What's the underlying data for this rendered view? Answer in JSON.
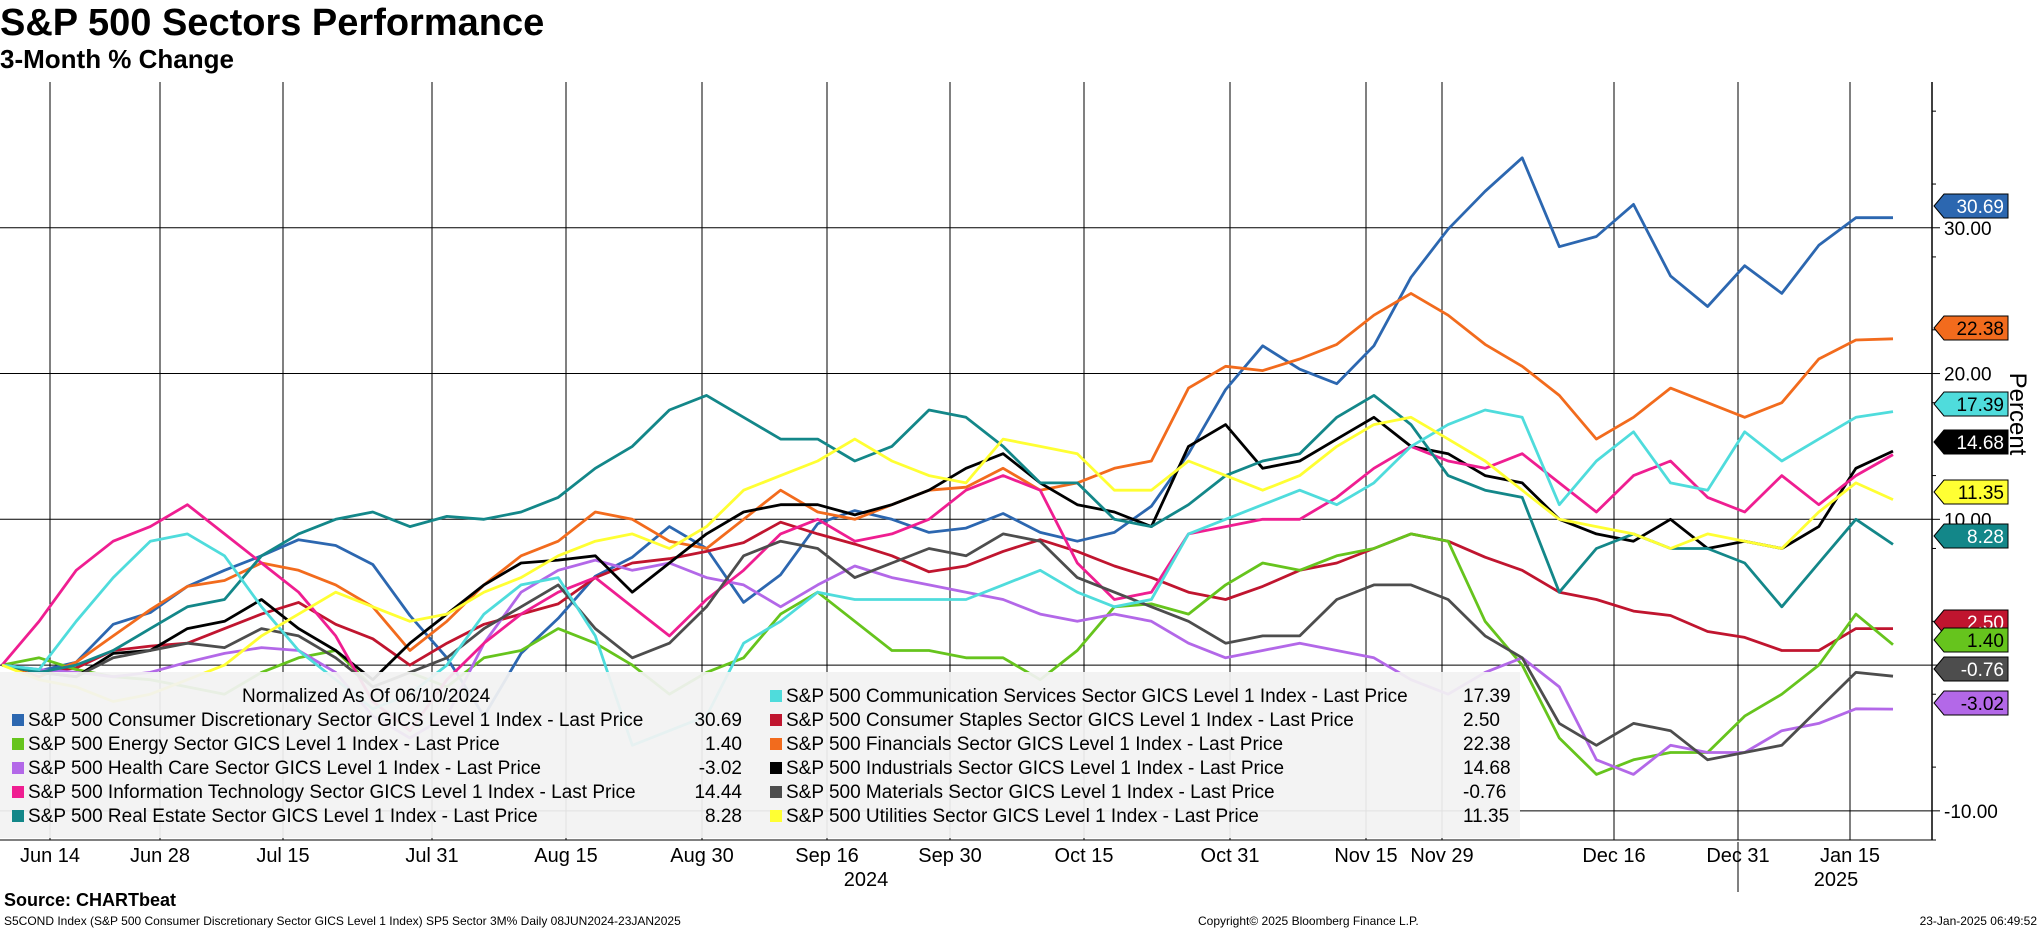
{
  "title": "S&P 500 Sectors Performance",
  "subtitle": "3-Month % Change",
  "source": "Source: CHARTbeat",
  "footer_left": "S5COND Index (S&P 500 Consumer Discretionary Sector GICS Level 1 Index) SP5 Sector 3M%  Daily 08JUN2024-23JAN2025",
  "footer_mid": "Copyright© 2025 Bloomberg Finance L.P.",
  "footer_right": "23-Jan-2025 06:49:52",
  "chart_data": {
    "type": "line",
    "ylabel": "Percent",
    "ylim": [
      -12,
      40
    ],
    "yticks": [
      "30.00",
      "20.00",
      "10.00",
      "0.00",
      "-10.00"
    ],
    "ytick_values": [
      30,
      20,
      10,
      0,
      -10
    ],
    "grid": true,
    "x_tick_labels": [
      "Jun 14",
      "Jun 28",
      "Jul 15",
      "Jul 31",
      "Aug 15",
      "Aug 30",
      "Sep 16",
      "Sep 30",
      "Oct 15",
      "Oct 31",
      "Nov 15",
      "Nov 29",
      "Dec 16",
      "Dec 31",
      "Jan 15"
    ],
    "year_labels": [
      "2024",
      "2025"
    ],
    "legend_header": "Normalized As Of 06/10/2024",
    "legend_placement": "bottom-left",
    "series": [
      {
        "name": "S&P 500 Consumer Discretionary Sector GICS Level 1 Index - Last Price",
        "last": "30.69",
        "color": "#2c67b0",
        "values": [
          0.0,
          -0.4,
          0.2,
          2.8,
          3.6,
          5.4,
          6.5,
          7.5,
          8.6,
          8.2,
          6.9,
          3.4,
          0.5,
          -3.5,
          0.8,
          3.2,
          6.1,
          7.4,
          9.5,
          8.0,
          4.3,
          6.2,
          9.7,
          10.6,
          10.0,
          9.1,
          9.4,
          10.4,
          9.1,
          8.5,
          9.1,
          10.9,
          14.5,
          18.9,
          21.9,
          20.3,
          19.3,
          21.9,
          26.6,
          29.9,
          32.5,
          34.8,
          28.7,
          29.4,
          31.6,
          26.7,
          24.6,
          27.4,
          25.5,
          28.8,
          30.69,
          30.69
        ]
      },
      {
        "name": "S&P 500 Consumer Staples Sector GICS Level 1 Index - Last Price",
        "last": "2.50",
        "color": "#c0152f",
        "values": [
          0.0,
          -0.5,
          -0.2,
          1.0,
          1.3,
          1.5,
          2.5,
          3.5,
          4.3,
          2.8,
          1.8,
          0.0,
          1.5,
          2.8,
          3.5,
          4.2,
          6.0,
          7.0,
          7.3,
          7.8,
          8.4,
          9.8,
          9.0,
          8.3,
          7.5,
          6.4,
          6.8,
          7.8,
          8.6,
          7.8,
          6.8,
          6.0,
          5.0,
          4.5,
          5.4,
          6.5,
          7.0,
          8.0,
          9.0,
          8.5,
          7.4,
          6.5,
          5.0,
          4.5,
          3.7,
          3.4,
          2.3,
          1.9,
          1.0,
          1.0,
          2.5,
          2.5
        ]
      },
      {
        "name": "S&P 500 Energy Sector GICS Level 1 Index - Last Price",
        "last": "1.40",
        "color": "#66c41d",
        "values": [
          0.0,
          0.5,
          -0.3,
          -0.8,
          -1.0,
          -1.5,
          -2.0,
          -0.5,
          0.5,
          1.0,
          -1.5,
          -0.5,
          -1.5,
          0.5,
          1.0,
          2.5,
          1.5,
          0.0,
          -2.0,
          -0.5,
          0.5,
          3.5,
          5.0,
          3.0,
          1.0,
          1.0,
          0.5,
          0.5,
          -1.0,
          1.0,
          4.0,
          4.2,
          3.5,
          5.5,
          7.0,
          6.5,
          7.5,
          8.0,
          9.0,
          8.5,
          3.0,
          0.0,
          -5.0,
          -7.5,
          -6.5,
          -6.0,
          -6.0,
          -3.5,
          -2.0,
          0.0,
          3.5,
          1.4
        ]
      },
      {
        "name": "S&P 500 Financials Sector GICS Level 1 Index - Last Price",
        "last": "22.38",
        "color": "#f26b1d",
        "values": [
          0.0,
          -0.8,
          0.2,
          2.0,
          3.8,
          5.4,
          5.8,
          7.0,
          6.5,
          5.5,
          4.0,
          1.0,
          3.0,
          5.5,
          7.5,
          8.5,
          10.5,
          10.0,
          8.5,
          8.0,
          10.0,
          12.0,
          10.5,
          10.0,
          11.0,
          12.0,
          12.2,
          13.5,
          12.0,
          12.5,
          13.5,
          14.0,
          19.0,
          20.5,
          20.2,
          21.0,
          22.0,
          24.0,
          25.5,
          24.0,
          22.0,
          20.5,
          18.5,
          15.5,
          17.0,
          19.0,
          18.0,
          17.0,
          18.0,
          21.0,
          22.3,
          22.38
        ]
      },
      {
        "name": "S&P 500 Health Care Sector GICS Level 1 Index - Last Price",
        "last": "-3.02",
        "color": "#b368e8",
        "values": [
          0.0,
          -0.3,
          -0.5,
          -0.8,
          -0.5,
          0.2,
          0.8,
          1.2,
          1.0,
          -0.5,
          -3.5,
          -5.0,
          -3.5,
          1.5,
          5.0,
          6.5,
          7.2,
          6.5,
          7.0,
          6.0,
          5.5,
          4.0,
          5.5,
          6.8,
          6.0,
          5.5,
          5.0,
          4.5,
          3.5,
          3.0,
          3.5,
          3.0,
          1.5,
          0.5,
          1.0,
          1.5,
          1.0,
          0.5,
          -1.0,
          -2.0,
          -0.5,
          0.5,
          -1.5,
          -6.5,
          -7.5,
          -5.5,
          -6.0,
          -6.0,
          -4.5,
          -4.0,
          -3.0,
          -3.02
        ]
      },
      {
        "name": "S&P 500 Industrials Sector GICS Level 1 Index - Last Price",
        "last": "14.68",
        "color": "#000000",
        "values": [
          0.0,
          -0.5,
          -0.8,
          0.8,
          1.0,
          2.5,
          3.0,
          4.5,
          2.5,
          1.0,
          -1.0,
          1.5,
          3.5,
          5.5,
          7.0,
          7.2,
          7.5,
          5.0,
          7.0,
          9.0,
          10.5,
          11.0,
          11.0,
          10.3,
          11.0,
          12.0,
          13.5,
          14.5,
          12.5,
          11.0,
          10.5,
          9.5,
          15.0,
          16.5,
          13.5,
          14.0,
          15.5,
          17.0,
          15.0,
          14.5,
          13.0,
          12.5,
          10.0,
          9.0,
          8.5,
          10.0,
          8.0,
          8.5,
          8.0,
          9.5,
          13.5,
          14.68
        ]
      },
      {
        "name": "S&P 500 Information Technology Sector GICS Level 1 Index - Last Price",
        "last": "14.44",
        "color": "#ef1e91",
        "values": [
          0.0,
          3.0,
          6.5,
          8.5,
          9.5,
          11.0,
          9.0,
          7.0,
          5.0,
          2.0,
          -2.5,
          -4.5,
          -1.0,
          1.5,
          3.5,
          5.0,
          6.0,
          4.0,
          2.0,
          4.5,
          6.5,
          9.0,
          10.0,
          8.5,
          9.0,
          10.0,
          12.0,
          13.0,
          12.0,
          7.0,
          4.5,
          5.0,
          9.0,
          9.5,
          10.0,
          10.0,
          11.5,
          13.5,
          15.0,
          14.0,
          13.5,
          14.5,
          12.5,
          10.5,
          13.0,
          14.0,
          11.5,
          10.5,
          13.0,
          11.0,
          13.0,
          14.44
        ]
      },
      {
        "name": "S&P 500 Materials Sector GICS Level 1 Index - Last Price",
        "last": "-0.76",
        "color": "#4d4d4d",
        "values": [
          0.0,
          -0.5,
          -0.8,
          0.5,
          1.0,
          1.5,
          1.2,
          2.5,
          2.0,
          0.5,
          -1.5,
          -0.5,
          0.5,
          2.5,
          4.0,
          5.5,
          2.5,
          0.5,
          1.5,
          4.0,
          7.5,
          8.5,
          8.0,
          6.0,
          7.0,
          8.0,
          7.5,
          9.0,
          8.5,
          6.0,
          5.0,
          4.0,
          3.0,
          1.5,
          2.0,
          2.0,
          4.5,
          5.5,
          5.5,
          4.5,
          2.0,
          0.5,
          -4.0,
          -5.5,
          -4.0,
          -4.5,
          -6.5,
          -6.0,
          -5.5,
          -3.0,
          -0.5,
          -0.76
        ]
      },
      {
        "name": "S&P 500 Real Estate Sector GICS Level 1 Index - Last Price",
        "last": "8.28",
        "color": "#138789",
        "values": [
          0.0,
          -0.5,
          0.0,
          1.0,
          2.5,
          4.0,
          4.5,
          7.5,
          9.0,
          10.0,
          10.5,
          9.5,
          10.2,
          10.0,
          10.5,
          11.5,
          13.5,
          15.0,
          17.5,
          18.5,
          17.0,
          15.5,
          15.5,
          14.0,
          15.0,
          17.5,
          17.0,
          15.0,
          12.5,
          12.5,
          10.0,
          9.5,
          11.0,
          13.0,
          14.0,
          14.5,
          17.0,
          18.5,
          16.5,
          13.0,
          12.0,
          11.5,
          5.0,
          8.0,
          9.0,
          8.0,
          8.0,
          7.0,
          4.0,
          7.0,
          10.0,
          8.28
        ]
      },
      {
        "name": "S&P 500 Communication Services Sector GICS Level 1 Index - Last Price",
        "last": "17.39",
        "color": "#4fdcdc",
        "values": [
          0.0,
          -0.3,
          3.0,
          6.0,
          8.5,
          9.0,
          7.5,
          4.0,
          1.0,
          -1.0,
          -3.0,
          -2.0,
          0.0,
          3.5,
          5.5,
          6.0,
          2.0,
          -5.5,
          -4.5,
          -3.5,
          1.5,
          3.0,
          5.0,
          4.5,
          4.5,
          4.5,
          4.5,
          5.5,
          6.5,
          5.0,
          4.0,
          4.5,
          9.0,
          10.0,
          11.0,
          12.0,
          11.0,
          12.5,
          15.0,
          16.5,
          17.5,
          17.0,
          11.0,
          14.0,
          16.0,
          12.5,
          12.0,
          16.0,
          14.0,
          15.5,
          17.0,
          17.39
        ]
      },
      {
        "name": "S&P 500 Utilities Sector GICS Level 1 Index - Last Price",
        "last": "11.35",
        "color": "#ffff33",
        "values": [
          0.0,
          -1.0,
          -1.5,
          -2.5,
          -2.0,
          -1.0,
          0.0,
          2.0,
          3.5,
          5.0,
          4.0,
          3.0,
          3.5,
          5.0,
          6.0,
          7.5,
          8.5,
          9.0,
          8.0,
          9.5,
          12.0,
          13.0,
          14.0,
          15.5,
          14.0,
          13.0,
          12.5,
          15.5,
          15.0,
          14.5,
          12.0,
          12.0,
          14.0,
          13.0,
          12.0,
          13.0,
          15.0,
          16.5,
          17.0,
          15.5,
          14.0,
          12.0,
          10.0,
          9.5,
          9.0,
          8.0,
          9.0,
          8.5,
          8.0,
          10.5,
          12.5,
          11.35
        ]
      }
    ]
  }
}
